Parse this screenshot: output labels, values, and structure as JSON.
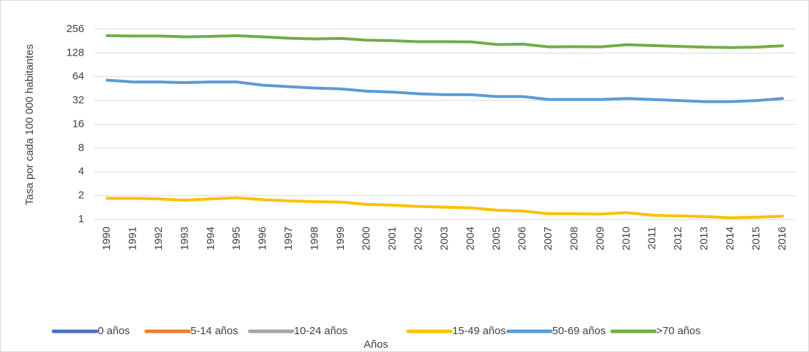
{
  "chart_data": {
    "type": "line",
    "y_label": "Tasa por cada  100 000 habitantes",
    "x_label": "Años",
    "log_scale": true,
    "grid": true,
    "legend": "bottom",
    "categories": [
      "1990",
      "1991",
      "1992",
      "1993",
      "1994",
      "1995",
      "1996",
      "1997",
      "1998",
      "1999",
      "2000",
      "2001",
      "2002",
      "2003",
      "2004",
      "2005",
      "2006",
      "2007",
      "2008",
      "2009",
      "2010",
      "2011",
      "2012",
      "2013",
      "2014",
      "2015",
      "2016"
    ],
    "ylim": [
      1,
      256
    ],
    "yticks": [
      1,
      2,
      4,
      8,
      16,
      32,
      64,
      128,
      256
    ],
    "series": [
      {
        "name": "0 años",
        "color": "#4472c4",
        "values": [
          null,
          null,
          null,
          null,
          null,
          null,
          null,
          null,
          null,
          null,
          null,
          null,
          null,
          null,
          null,
          null,
          null,
          null,
          null,
          null,
          null,
          null,
          null,
          null,
          null,
          null,
          null
        ]
      },
      {
        "name": "5-14 años",
        "color": "#ed7d31",
        "values": [
          null,
          null,
          null,
          null,
          null,
          null,
          null,
          null,
          null,
          null,
          null,
          null,
          null,
          null,
          null,
          null,
          null,
          null,
          null,
          null,
          null,
          null,
          null,
          null,
          null,
          null,
          null
        ]
      },
      {
        "name": "10-24 años",
        "color": "#a5a5a5",
        "values": [
          null,
          null,
          null,
          null,
          null,
          null,
          null,
          null,
          null,
          null,
          null,
          null,
          null,
          null,
          null,
          null,
          null,
          null,
          null,
          null,
          null,
          null,
          null,
          null,
          null,
          null,
          null
        ]
      },
      {
        "name": "15-49 años",
        "color": "#ffc000",
        "values": [
          1.85,
          1.85,
          1.82,
          1.75,
          1.82,
          1.88,
          1.78,
          1.72,
          1.68,
          1.66,
          1.55,
          1.52,
          1.46,
          1.43,
          1.4,
          1.31,
          1.28,
          1.18,
          1.18,
          1.17,
          1.22,
          1.13,
          1.11,
          1.09,
          1.05,
          1.07,
          1.1
        ]
      },
      {
        "name": "50-69 años",
        "color": "#5b9bd5",
        "values": [
          58,
          55,
          55,
          54,
          55,
          55,
          50,
          48,
          46,
          45,
          42,
          41,
          39,
          38,
          38,
          36,
          36,
          33,
          33,
          33,
          34,
          33,
          32,
          31,
          31,
          32,
          34
        ]
      },
      {
        "name": ">70 años",
        "color": "#70ad47",
        "values": [
          212,
          210,
          210,
          205,
          208,
          212,
          205,
          197,
          193,
          196,
          186,
          183,
          178,
          178,
          177,
          164,
          166,
          153,
          154,
          153,
          163,
          159,
          155,
          152,
          150,
          152,
          158
        ]
      }
    ]
  }
}
